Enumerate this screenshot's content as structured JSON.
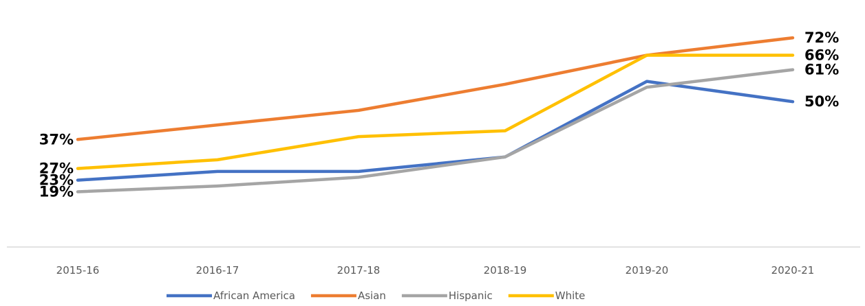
{
  "chart_data": {
    "type": "line",
    "categories": [
      "2015-16",
      "2016-17",
      "2017-18",
      "2018-19",
      "2019-20",
      "2020-21"
    ],
    "ylim": [
      0,
      85
    ],
    "grid": false,
    "legend_position": "bottom",
    "series": [
      {
        "name": "African America",
        "color": "#4472C4",
        "values": [
          23,
          26,
          26,
          31,
          57,
          50
        ],
        "labels": {
          "0": "23%",
          "5": "50%"
        }
      },
      {
        "name": "Asian",
        "color": "#ED7D31",
        "values": [
          37,
          42,
          47,
          56,
          66,
          72
        ],
        "labels": {
          "0": "37%",
          "5": "72%"
        }
      },
      {
        "name": "Hispanic",
        "color": "#A5A5A5",
        "values": [
          19,
          21,
          24,
          31,
          55,
          61
        ],
        "labels": {
          "0": "19%",
          "5": "61%"
        }
      },
      {
        "name": "White",
        "color": "#FFC000",
        "values": [
          27,
          30,
          38,
          40,
          66,
          66
        ],
        "labels": {
          "0": "27%",
          "5": "66%"
        }
      }
    ]
  }
}
